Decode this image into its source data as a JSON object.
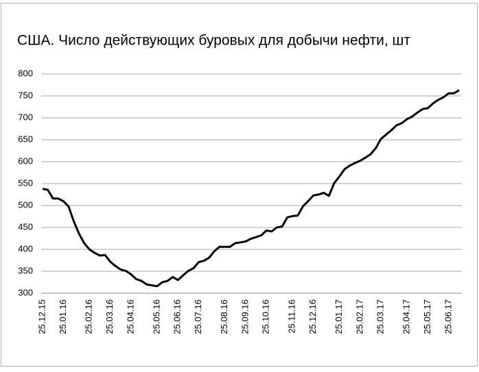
{
  "chart_data": {
    "type": "line",
    "title": "США. Число действующих буровых для добычи нефти, шт",
    "categories": [
      "25.12.15",
      null,
      null,
      null,
      "25.01.16",
      null,
      null,
      null,
      null,
      "25.02.16",
      null,
      null,
      null,
      "25.03.16",
      null,
      null,
      null,
      "25.04.16",
      null,
      null,
      null,
      null,
      "25.05.16",
      null,
      null,
      null,
      "25.06.16",
      null,
      null,
      null,
      "25.07.16",
      null,
      null,
      null,
      null,
      "25.08.16",
      null,
      null,
      null,
      "25.09.16",
      null,
      null,
      null,
      "25.10.16",
      null,
      null,
      null,
      null,
      "25.11.16",
      null,
      null,
      null,
      "25.12.16",
      null,
      null,
      null,
      null,
      "25.01.17",
      null,
      null,
      null,
      "25.02.17",
      null,
      null,
      null,
      "25.03.17",
      null,
      null,
      null,
      null,
      "25.04.17",
      null,
      null,
      null,
      "25.05.17",
      null,
      null,
      null,
      "25.06.17",
      null,
      null
    ],
    "series": [
      {
        "color": "#000000",
        "values": [
          538,
          536,
          516,
          516,
          510,
          498,
          464,
          436,
          414,
          400,
          392,
          386,
          387,
          372,
          362,
          354,
          351,
          343,
          332,
          328,
          320,
          318,
          316,
          325,
          328,
          337,
          330,
          341,
          351,
          357,
          371,
          374,
          381,
          396,
          406,
          406,
          406,
          414,
          416,
          418,
          424,
          428,
          432,
          443,
          441,
          450,
          452,
          473,
          476,
          477,
          498,
          510,
          523,
          525,
          529,
          522,
          551,
          566,
          583,
          591,
          597,
          602,
          609,
          617,
          631,
          652,
          662,
          672,
          683,
          688,
          697,
          703,
          712,
          720,
          722,
          733,
          741,
          747,
          756,
          756,
          763
        ]
      }
    ],
    "ylim": [
      300,
      800
    ],
    "yticks": [
      300,
      350,
      400,
      450,
      500,
      550,
      600,
      650,
      700,
      750,
      800
    ],
    "grid": true
  }
}
